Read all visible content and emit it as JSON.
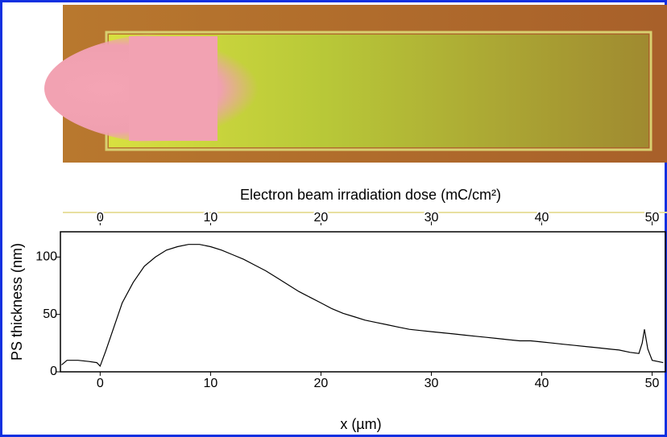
{
  "chart_data": {
    "type": "line",
    "x2label": "Electron beam irradiation dose (mC/cm²)",
    "xlabel": "x (µm)",
    "ylabel": "PS thickness (nm)",
    "x": [
      -3.5,
      -3,
      -2,
      -1,
      -0.3,
      0,
      0.5,
      1,
      2,
      3,
      4,
      5,
      6,
      7,
      8,
      9,
      10,
      11,
      12,
      13,
      14,
      15,
      16,
      17,
      18,
      19,
      20,
      21,
      22,
      23,
      24,
      25,
      26,
      27,
      28,
      29,
      30,
      31,
      32,
      33,
      34,
      35,
      36,
      37,
      38,
      39,
      40,
      41,
      42,
      43,
      44,
      45,
      46,
      47,
      48,
      48.8,
      49.1,
      49.3,
      49.6,
      50,
      51
    ],
    "values": [
      6,
      10,
      10,
      9,
      8,
      5,
      18,
      32,
      60,
      78,
      92,
      100,
      106,
      109,
      111,
      111,
      109,
      106,
      102,
      98,
      93,
      88,
      82,
      76,
      70,
      65,
      60,
      55,
      51,
      48,
      45,
      43,
      41,
      39,
      37,
      36,
      35,
      34,
      33,
      32,
      31,
      30,
      29,
      28,
      27,
      27,
      26,
      25,
      24,
      23,
      22,
      21,
      20,
      19,
      17,
      16,
      25,
      37,
      20,
      10,
      8
    ],
    "color": "#000000",
    "xlim": [
      -3.6,
      51.2
    ],
    "xticks": [
      0,
      10,
      20,
      30,
      40,
      50
    ],
    "x2lim": [
      -3.6,
      51.2
    ],
    "x2ticks": [
      0,
      10,
      20,
      30,
      40,
      50
    ],
    "ylim": [
      0,
      122
    ],
    "yticks": [
      0,
      50,
      100
    ]
  }
}
